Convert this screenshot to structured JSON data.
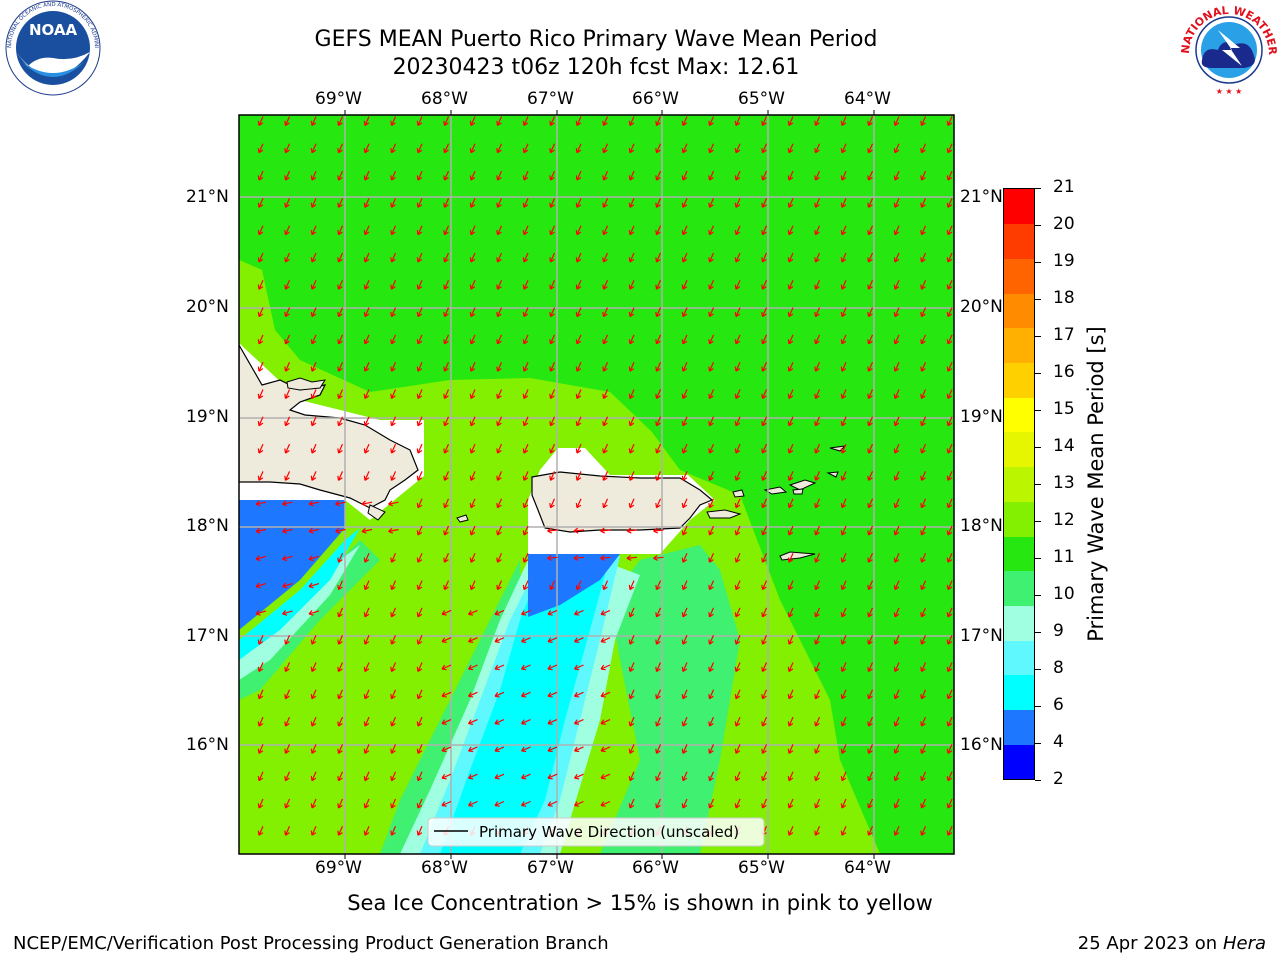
{
  "header": {
    "title_line1": "GEFS MEAN Puerto Rico Primary Wave Mean Period",
    "title_line2": "20230423 t06z 120h fcst   Max: 12.61"
  },
  "logos": {
    "noaa_text": "NOAA",
    "noaa_ring_text": "NATIONAL OCEANIC AND ATMOSPHERIC ADMINISTRATION · U.S. DEPARTMENT OF COMMERCE",
    "nws_ring_text": "NATIONAL WEATHER SERVICE"
  },
  "map": {
    "lon_labels": [
      "69°W",
      "68°W",
      "67°W",
      "66°W",
      "65°W",
      "64°W"
    ],
    "lat_labels": [
      "21°N",
      "20°N",
      "19°N",
      "18°N",
      "17°N",
      "16°N"
    ],
    "legend_label": "Primary Wave Direction (unscaled)",
    "arrow_color": "#ff0000",
    "land_color": "#efebdc",
    "grid_color": "#b0b0b0"
  },
  "colorbar": {
    "label": "Primary Wave Mean Period [s]",
    "ticks": [
      "21",
      "20",
      "19",
      "18",
      "17",
      "16",
      "15",
      "14",
      "13",
      "12",
      "11",
      "10",
      "9",
      "8",
      "6",
      "4",
      "2"
    ],
    "colors": [
      "#0000ff",
      "#1e78ff",
      "#00ffff",
      "#60f8ff",
      "#a0ffe0",
      "#40f070",
      "#26e810",
      "#82f000",
      "#bcf500",
      "#e6f500",
      "#ffff00",
      "#ffd000",
      "#ffb000",
      "#ff8c00",
      "#ff6400",
      "#ff3c00",
      "#ff0000"
    ]
  },
  "caption": "Sea Ice Concentration > 15% is shown in pink to yellow",
  "footer": {
    "left": "NCEP/EMC/Verification Post Processing Product Generation Branch",
    "right_date": "25 Apr 2023 on ",
    "right_host": "Hera"
  }
}
